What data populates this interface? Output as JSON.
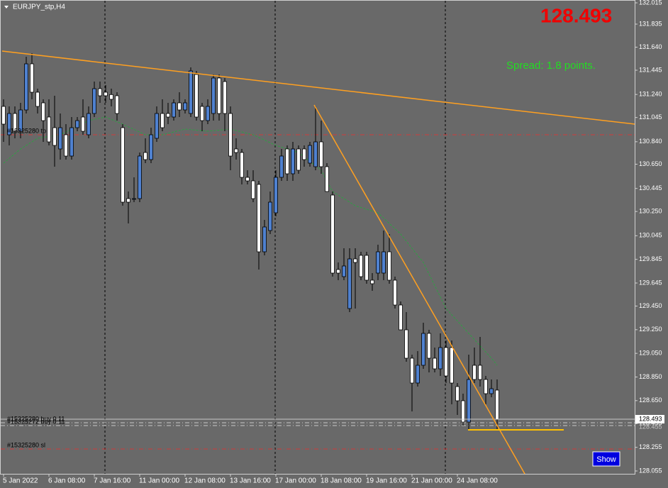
{
  "chart_data": {
    "type": "candlestick",
    "title": "EURJPY_stp,H4",
    "bid_display": "128.493",
    "spread_text": "Spread: 1.8 points.",
    "button_label": "Show",
    "price_label": "128.493",
    "level_price_label": "128.455",
    "up_color": "#4f81d0",
    "down_color": "#ffffff",
    "wick_color": "#000000",
    "categories": [
      "5 Jan 2022",
      null,
      null,
      null,
      null,
      null,
      null,
      null,
      "6 Jan 08:00",
      null,
      null,
      null,
      null,
      null,
      null,
      null,
      "7 Jan 16:00",
      null,
      null,
      null,
      null,
      null,
      null,
      null,
      "11 Jan 00:00",
      null,
      null,
      null,
      null,
      null,
      null,
      null,
      "12 Jan 08:00",
      null,
      null,
      null,
      null,
      null,
      null,
      null,
      "13 Jan 16:00",
      null,
      null,
      null,
      null,
      null,
      null,
      null,
      "17 Jan 00:00",
      null,
      null,
      null,
      null,
      null,
      null,
      null,
      "18 Jan 08:00",
      null,
      null,
      null,
      null,
      null,
      null,
      null,
      "19 Jan 16:00",
      null,
      null,
      null,
      null,
      null,
      null,
      null,
      "21 Jan 00:00",
      null,
      null,
      null,
      null,
      null,
      null,
      null,
      "24 Jan 08:00",
      null,
      null,
      null,
      null,
      null,
      null,
      null
    ],
    "ohlc": [
      [
        131.139,
        131.199,
        130.839,
        130.989
      ],
      [
        130.899,
        131.139,
        130.809,
        131.079
      ],
      [
        131.079,
        131.139,
        130.869,
        130.929
      ],
      [
        130.929,
        131.169,
        130.869,
        131.109
      ],
      [
        131.109,
        131.559,
        131.079,
        131.499
      ],
      [
        131.499,
        131.589,
        131.199,
        131.259
      ],
      [
        131.259,
        131.289,
        131.079,
        131.139
      ],
      [
        131.169,
        131.199,
        130.839,
        131.019
      ],
      [
        131.049,
        131.199,
        130.809,
        130.839
      ],
      [
        130.959,
        131.229,
        130.629,
        130.809
      ],
      [
        130.779,
        131.079,
        130.689,
        130.959
      ],
      [
        130.899,
        130.989,
        130.689,
        130.719
      ],
      [
        130.719,
        131.049,
        130.689,
        130.959
      ],
      [
        130.959,
        131.049,
        130.929,
        131.019
      ],
      [
        131.049,
        131.199,
        130.899,
        130.929
      ],
      [
        130.899,
        131.139,
        130.869,
        131.079
      ],
      [
        131.079,
        131.349,
        131.049,
        131.289
      ],
      [
        131.289,
        131.349,
        131.169,
        131.229
      ],
      [
        131.259,
        131.319,
        131.169,
        131.229
      ],
      [
        131.239,
        131.289,
        131.139,
        131.199
      ],
      [
        131.229,
        131.259,
        131.019,
        131.079
      ],
      [
        130.959,
        130.989,
        130.299,
        130.329
      ],
      [
        130.359,
        130.419,
        130.149,
        130.329
      ],
      [
        130.359,
        130.539,
        130.329,
        130.359
      ],
      [
        130.359,
        130.749,
        130.329,
        130.719
      ],
      [
        130.749,
        130.869,
        130.659,
        130.689
      ],
      [
        130.689,
        130.959,
        130.659,
        130.899
      ],
      [
        130.869,
        131.139,
        130.839,
        131.079
      ],
      [
        131.079,
        131.199,
        130.929,
        130.959
      ],
      [
        131.079,
        131.169,
        130.989,
        131.049
      ],
      [
        131.049,
        131.199,
        131.019,
        131.169
      ],
      [
        131.169,
        131.259,
        131.049,
        131.109
      ],
      [
        131.109,
        131.199,
        131.079,
        131.169
      ],
      [
        131.079,
        131.469,
        131.049,
        131.439
      ],
      [
        131.409,
        131.439,
        131.019,
        131.049
      ],
      [
        131.139,
        131.169,
        130.929,
        131.019
      ],
      [
        131.019,
        131.199,
        130.989,
        131.139
      ],
      [
        131.079,
        131.409,
        131.019,
        131.379
      ],
      [
        131.379,
        131.409,
        131.019,
        131.079
      ],
      [
        131.349,
        131.379,
        130.929,
        131.079
      ],
      [
        131.079,
        131.139,
        130.599,
        130.719
      ],
      [
        130.779,
        130.869,
        130.689,
        130.749
      ],
      [
        130.749,
        130.779,
        130.479,
        130.539
      ],
      [
        130.539,
        130.599,
        130.479,
        130.509
      ],
      [
        130.509,
        130.599,
        130.329,
        130.359
      ],
      [
        130.479,
        130.509,
        129.759,
        129.909
      ],
      [
        129.909,
        130.179,
        129.879,
        130.119
      ],
      [
        130.089,
        130.419,
        130.059,
        130.329
      ],
      [
        130.239,
        130.599,
        130.209,
        130.539
      ],
      [
        130.539,
        130.779,
        130.509,
        130.719
      ],
      [
        130.779,
        130.809,
        130.509,
        130.569
      ],
      [
        130.569,
        130.839,
        130.509,
        130.779
      ],
      [
        130.779,
        130.809,
        130.569,
        130.599
      ],
      [
        130.779,
        130.809,
        130.629,
        130.689
      ],
      [
        130.659,
        130.839,
        130.629,
        130.809
      ],
      [
        130.629,
        131.139,
        130.599,
        130.839
      ],
      [
        130.839,
        131.019,
        130.569,
        130.629
      ],
      [
        130.629,
        130.659,
        130.419,
        130.419
      ],
      [
        130.389,
        130.419,
        129.699,
        129.729
      ],
      [
        129.759,
        129.819,
        129.669,
        129.729
      ],
      [
        129.699,
        129.939,
        129.669,
        129.789
      ],
      [
        129.429,
        129.939,
        129.399,
        129.849
      ],
      [
        129.849,
        129.939,
        129.429,
        129.819
      ],
      [
        129.879,
        129.909,
        129.669,
        129.699
      ],
      [
        129.879,
        129.909,
        129.639,
        129.669
      ],
      [
        129.669,
        129.729,
        129.579,
        129.639
      ],
      [
        129.729,
        129.969,
        129.669,
        129.909
      ],
      [
        129.729,
        130.089,
        129.669,
        129.909
      ],
      [
        129.909,
        130.059,
        129.639,
        129.669
      ],
      [
        129.669,
        129.699,
        129.429,
        129.459
      ],
      [
        129.459,
        129.489,
        129.249,
        129.249
      ],
      [
        129.249,
        129.399,
        128.979,
        129.009
      ],
      [
        129.009,
        129.039,
        128.559,
        128.799
      ],
      [
        128.799,
        129.069,
        128.769,
        128.949
      ],
      [
        128.949,
        129.309,
        128.919,
        129.219
      ],
      [
        129.219,
        129.249,
        128.889,
        129.009
      ],
      [
        129.009,
        129.099,
        128.889,
        128.919
      ],
      [
        128.919,
        129.219,
        128.859,
        129.099
      ],
      [
        129.099,
        129.159,
        128.799,
        128.859
      ],
      [
        129.099,
        129.159,
        128.619,
        128.799
      ],
      [
        128.769,
        128.799,
        128.529,
        128.649
      ],
      [
        128.649,
        128.709,
        128.439,
        128.469
      ],
      [
        128.469,
        129.039,
        128.409,
        128.829
      ],
      [
        128.949,
        129.099,
        128.799,
        128.829
      ],
      [
        128.949,
        129.189,
        128.769,
        128.829
      ],
      [
        128.829,
        128.859,
        128.619,
        128.709
      ],
      [
        128.709,
        128.829,
        128.679,
        128.751
      ],
      [
        128.739,
        128.829,
        128.409,
        128.493
      ]
    ],
    "ma": {
      "color": "#2ea043",
      "index": [
        0,
        3,
        6,
        10,
        15,
        18,
        21,
        25,
        28,
        32,
        36,
        40,
        44,
        48,
        52,
        56,
        58,
        62,
        66,
        70,
        74,
        78,
        82,
        86,
        87
      ],
      "values": [
        130.659,
        130.779,
        130.869,
        130.899,
        131.019,
        131.049,
        130.989,
        130.899,
        130.899,
        130.947,
        130.929,
        130.947,
        130.899,
        130.809,
        130.749,
        130.599,
        130.419,
        130.299,
        130.239,
        130.059,
        129.819,
        129.429,
        129.219,
        129.009,
        128.949
      ]
    },
    "levels": [
      {
        "label": "#15325280 tp",
        "value": 130.899,
        "color": "#d03a3a"
      },
      {
        "label": "#15325280 buy 0.11",
        "value": 128.463,
        "color": "#c8c8c8"
      },
      {
        "label": "#15325272 buy 0.11",
        "value": 128.439,
        "color": "#c8c8c8"
      },
      {
        "label": "#15325280 sl",
        "value": 128.241,
        "color": "#d03a3a"
      }
    ],
    "ylim": [
      128.031,
      132.039
    ],
    "yticks": [
      132.015,
      131.835,
      {
        "value": 131.64,
        "label": "131.640"
      },
      131.445,
      {
        "value": 131.24,
        "label": "131.240"
      },
      131.045,
      {
        "value": 130.84,
        "label": "130.840"
      },
      {
        "value": 130.65,
        "label": "130.650"
      },
      130.445,
      {
        "value": 130.25,
        "label": "130.250"
      },
      130.045,
      129.845,
      129.645,
      {
        "value": 129.45,
        "label": "129.450"
      },
      {
        "value": 129.25,
        "label": "129.250"
      },
      {
        "value": 129.05,
        "label": "129.050"
      },
      {
        "value": 128.85,
        "label": "128.850"
      },
      {
        "value": 128.65,
        "label": "128.650"
      },
      128.455,
      128.255,
      128.055
    ]
  }
}
